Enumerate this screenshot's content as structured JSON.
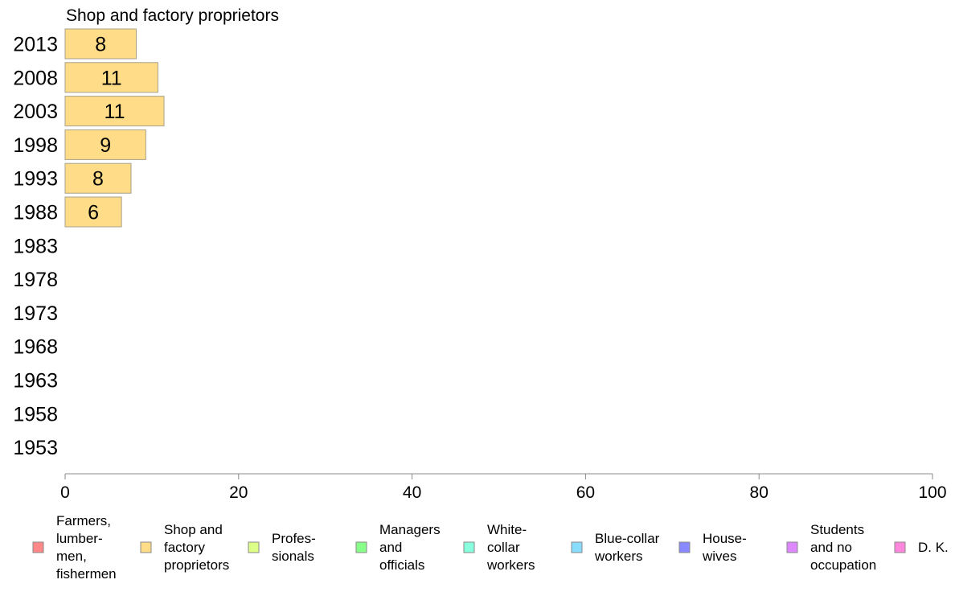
{
  "chart_data": {
    "type": "bar",
    "orientation": "horizontal",
    "title": "Shop and factory proprietors",
    "categories": [
      "2013",
      "2008",
      "2003",
      "1998",
      "1993",
      "1988",
      "1983",
      "1978",
      "1973",
      "1968",
      "1963",
      "1958",
      "1953"
    ],
    "series": [
      {
        "name": "Shop and factory proprietors",
        "color": "#ffdd88",
        "values": [
          8.2,
          10.7,
          11.4,
          9.3,
          7.6,
          6.5,
          null,
          null,
          null,
          null,
          null,
          null,
          null
        ],
        "labels": [
          "8",
          "11",
          "11",
          "9",
          "8",
          "6",
          "",
          "",
          "",
          "",
          "",
          "",
          ""
        ]
      }
    ],
    "xlim": [
      0,
      100
    ],
    "xticks": [
      "0",
      "20",
      "40",
      "60",
      "80",
      "100"
    ],
    "grid": false,
    "legend": {
      "placement": "bottom",
      "items": [
        {
          "lines": [
            "Farmers,",
            "lumber-",
            "men,",
            "fishermen"
          ],
          "color": "#ff8888"
        },
        {
          "lines": [
            "Shop and",
            "factory",
            "proprietors"
          ],
          "color": "#ffdd88"
        },
        {
          "lines": [
            "Profes-",
            "sionals"
          ],
          "color": "#ddff88"
        },
        {
          "lines": [
            "Managers",
            "and",
            "officials"
          ],
          "color": "#88ff88"
        },
        {
          "lines": [
            "White-",
            "collar",
            "workers"
          ],
          "color": "#88ffdd"
        },
        {
          "lines": [
            "Blue-collar",
            "workers"
          ],
          "color": "#88ddff"
        },
        {
          "lines": [
            "House-",
            "wives"
          ],
          "color": "#8888ff"
        },
        {
          "lines": [
            "Students",
            "and no",
            "occupation"
          ],
          "color": "#dd88ff"
        },
        {
          "lines": [
            "D. K."
          ],
          "color": "#ff88dd"
        }
      ]
    }
  }
}
